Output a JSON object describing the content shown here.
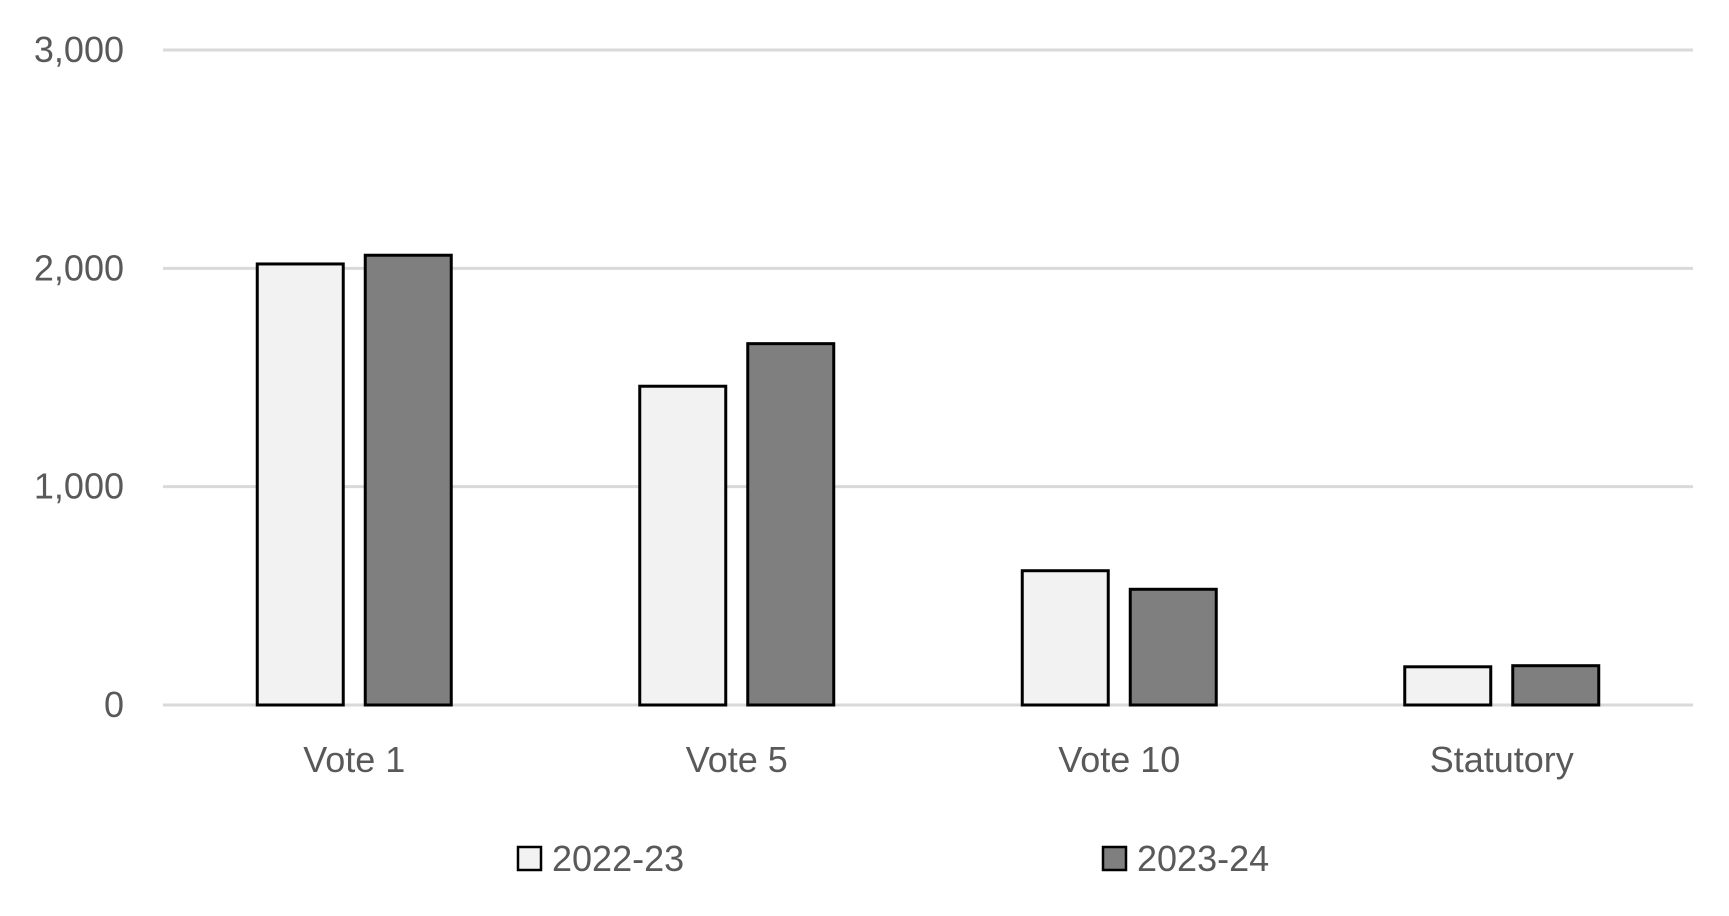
{
  "chart_data": {
    "type": "bar",
    "categories": [
      "Vote 1",
      "Vote 5",
      "Vote 10",
      "Statutory"
    ],
    "series": [
      {
        "name": "2022-23",
        "values": [
          2020,
          1460,
          615,
          175
        ],
        "color": "#f2f2f2"
      },
      {
        "name": "2023-24",
        "values": [
          2060,
          1655,
          530,
          180
        ],
        "color": "#7f7f7f"
      }
    ],
    "title": "",
    "xlabel": "",
    "ylabel": "",
    "ylim": [
      0,
      3000
    ],
    "yticks": [
      0,
      1000,
      2000,
      3000
    ],
    "ytick_labels": [
      "0",
      "1,000",
      "2,000",
      "3,000"
    ],
    "grid": true,
    "legend_position": "bottom",
    "gridline_color": "#d9d9d9",
    "bar_outline_color": "#000000",
    "text_color": "#595959"
  }
}
